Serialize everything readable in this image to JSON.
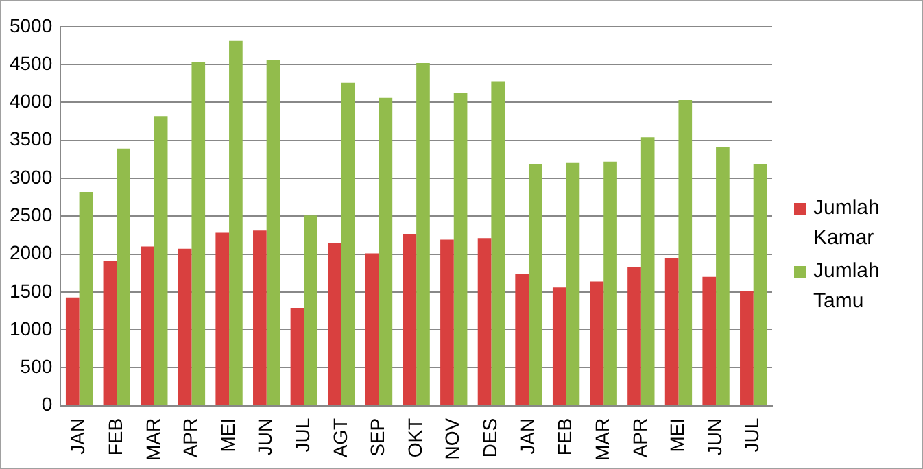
{
  "chart_data": {
    "type": "bar",
    "categories": [
      "JAN",
      "FEB",
      "MAR",
      "APR",
      "MEI",
      "JUN",
      "JUL",
      "AGT",
      "SEP",
      "OKT",
      "NOV",
      "DES",
      "JAN",
      "FEB",
      "MAR",
      "APR",
      "MEI",
      "JUN",
      "JUL"
    ],
    "series": [
      {
        "name": "Jumlah Kamar",
        "color": "#d9403f",
        "values": [
          1430,
          1910,
          2100,
          2070,
          2280,
          2310,
          1290,
          2140,
          2010,
          2260,
          2190,
          2210,
          1740,
          1560,
          1640,
          1830,
          1950,
          1700,
          1510
        ]
      },
      {
        "name": "Jumlah Tamu",
        "color": "#92bc4c",
        "values": [
          2820,
          3390,
          3820,
          4530,
          4810,
          4560,
          2510,
          4260,
          4060,
          4520,
          4120,
          4280,
          3190,
          3210,
          3220,
          3540,
          4030,
          3410,
          3190
        ]
      }
    ],
    "ylim": [
      0,
      5000
    ],
    "yticks": [
      0,
      500,
      1000,
      1500,
      2000,
      2500,
      3000,
      3500,
      4000,
      4500,
      5000
    ],
    "grid": "y",
    "legend": "right"
  }
}
